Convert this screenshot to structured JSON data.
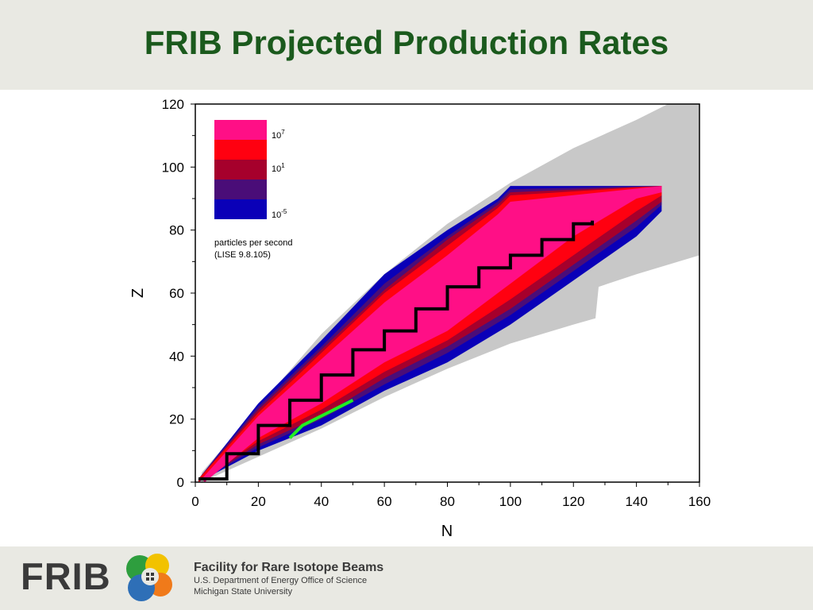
{
  "title": "FRIB Projected Production Rates",
  "chart_data": {
    "type": "heatmap",
    "xlabel": "N",
    "ylabel": "Z",
    "xlim": [
      0,
      160
    ],
    "ylim": [
      0,
      120
    ],
    "x_ticks": [
      0,
      20,
      40,
      60,
      80,
      100,
      120,
      140,
      160
    ],
    "y_ticks": [
      0,
      20,
      40,
      60,
      80,
      100,
      120
    ],
    "legend": {
      "placement": "top-left",
      "levels": [
        {
          "color": "#ff0f86"
        },
        {
          "color": "#ff0010"
        },
        {
          "color": "#a6002c"
        },
        {
          "color": "#4a0d78"
        },
        {
          "color": "#0a00b8"
        }
      ],
      "labels": [
        {
          "base": "10",
          "exp": "7"
        },
        {
          "base": "10",
          "exp": "1"
        },
        {
          "base": "10",
          "exp": "-5"
        }
      ],
      "note_line1": "particles per second",
      "note_line2": "(LISE 9.8.105)"
    },
    "region_estimates": {
      "predicted_limits": {
        "color": "#c8c8c8",
        "upper": [
          [
            2,
            3
          ],
          [
            40,
            47
          ],
          [
            60,
            66
          ],
          [
            80,
            82
          ],
          [
            100,
            95
          ],
          [
            120,
            106
          ],
          [
            140,
            115
          ],
          [
            150,
            120
          ],
          [
            160,
            120
          ]
        ],
        "lower": [
          [
            2,
            0
          ],
          [
            40,
            17
          ],
          [
            60,
            27
          ],
          [
            80,
            36
          ],
          [
            100,
            44
          ],
          [
            120,
            50
          ],
          [
            127,
            52
          ],
          [
            128,
            62
          ],
          [
            140,
            66
          ],
          [
            160,
            72
          ]
        ]
      },
      "rate_below_1e-5": {
        "color": "#0a00b8",
        "upper": [
          [
            1,
            1
          ],
          [
            20,
            25
          ],
          [
            40,
            45
          ],
          [
            60,
            66
          ],
          [
            80,
            80
          ],
          [
            96,
            90
          ],
          [
            100,
            94
          ],
          [
            148,
            94
          ]
        ],
        "lower": [
          [
            1,
            0
          ],
          [
            20,
            10
          ],
          [
            40,
            18
          ],
          [
            60,
            29
          ],
          [
            80,
            38
          ],
          [
            100,
            50
          ],
          [
            120,
            64
          ],
          [
            140,
            78
          ],
          [
            148,
            86
          ]
        ]
      },
      "rate_1e-5_to_1e-2": {
        "color": "#4a0d78",
        "upper": [
          [
            1,
            1
          ],
          [
            20,
            24
          ],
          [
            40,
            43
          ],
          [
            60,
            63
          ],
          [
            80,
            78
          ],
          [
            96,
            89
          ],
          [
            100,
            93
          ],
          [
            148,
            94
          ]
        ],
        "lower": [
          [
            1,
            0
          ],
          [
            20,
            11
          ],
          [
            40,
            20
          ],
          [
            60,
            31
          ],
          [
            80,
            41
          ],
          [
            100,
            53
          ],
          [
            120,
            67
          ],
          [
            140,
            81
          ],
          [
            148,
            88
          ]
        ]
      },
      "rate_1e-2_to_1e1": {
        "color": "#a6002c",
        "upper": [
          [
            1,
            1
          ],
          [
            20,
            23
          ],
          [
            40,
            42
          ],
          [
            60,
            61
          ],
          [
            80,
            77
          ],
          [
            96,
            88
          ],
          [
            100,
            92
          ],
          [
            148,
            94
          ]
        ],
        "lower": [
          [
            1,
            0
          ],
          [
            20,
            12
          ],
          [
            40,
            21
          ],
          [
            60,
            33
          ],
          [
            80,
            43
          ],
          [
            100,
            55
          ],
          [
            120,
            69
          ],
          [
            140,
            83
          ],
          [
            148,
            89
          ]
        ]
      },
      "rate_1e1_to_1e4": {
        "color": "#ff0010",
        "upper": [
          [
            1,
            1
          ],
          [
            20,
            22
          ],
          [
            40,
            41
          ],
          [
            60,
            60
          ],
          [
            80,
            75
          ],
          [
            96,
            87
          ],
          [
            100,
            91
          ],
          [
            148,
            94
          ]
        ],
        "lower": [
          [
            1,
            0
          ],
          [
            20,
            13
          ],
          [
            40,
            23
          ],
          [
            60,
            35
          ],
          [
            80,
            45
          ],
          [
            100,
            58
          ],
          [
            120,
            72
          ],
          [
            140,
            86
          ],
          [
            148,
            91
          ]
        ]
      },
      "rate_above_1e4": {
        "color": "#ff0f86",
        "upper": [
          [
            2,
            1
          ],
          [
            20,
            21
          ],
          [
            40,
            39
          ],
          [
            60,
            57
          ],
          [
            80,
            72
          ],
          [
            96,
            85
          ],
          [
            100,
            89
          ],
          [
            148,
            94
          ]
        ],
        "lower": [
          [
            3,
            0
          ],
          [
            20,
            14
          ],
          [
            40,
            25
          ],
          [
            60,
            38
          ],
          [
            80,
            48
          ],
          [
            100,
            63
          ],
          [
            120,
            78
          ],
          [
            140,
            90
          ],
          [
            148,
            92
          ]
        ]
      },
      "stable_nuclei": {
        "color": "#000000",
        "line": [
          [
            1,
            1
          ],
          [
            10,
            9
          ],
          [
            20,
            18
          ],
          [
            30,
            26
          ],
          [
            40,
            34
          ],
          [
            50,
            42
          ],
          [
            60,
            48
          ],
          [
            70,
            55
          ],
          [
            80,
            62
          ],
          [
            90,
            68
          ],
          [
            100,
            72
          ],
          [
            110,
            77
          ],
          [
            120,
            82
          ],
          [
            126,
            83
          ]
        ]
      },
      "proton_dripline_green": {
        "color": "#22ee22",
        "line": [
          [
            30,
            14
          ],
          [
            34,
            18
          ],
          [
            38,
            20
          ],
          [
            42,
            22
          ],
          [
            46,
            24
          ],
          [
            50,
            26
          ]
        ]
      }
    }
  },
  "footer": {
    "logo_text": "FRIB",
    "org_name": "Facility for Rare Isotope Beams",
    "org_line1": "U.S. Department of Energy Office of Science",
    "org_line2": "Michigan State University"
  }
}
